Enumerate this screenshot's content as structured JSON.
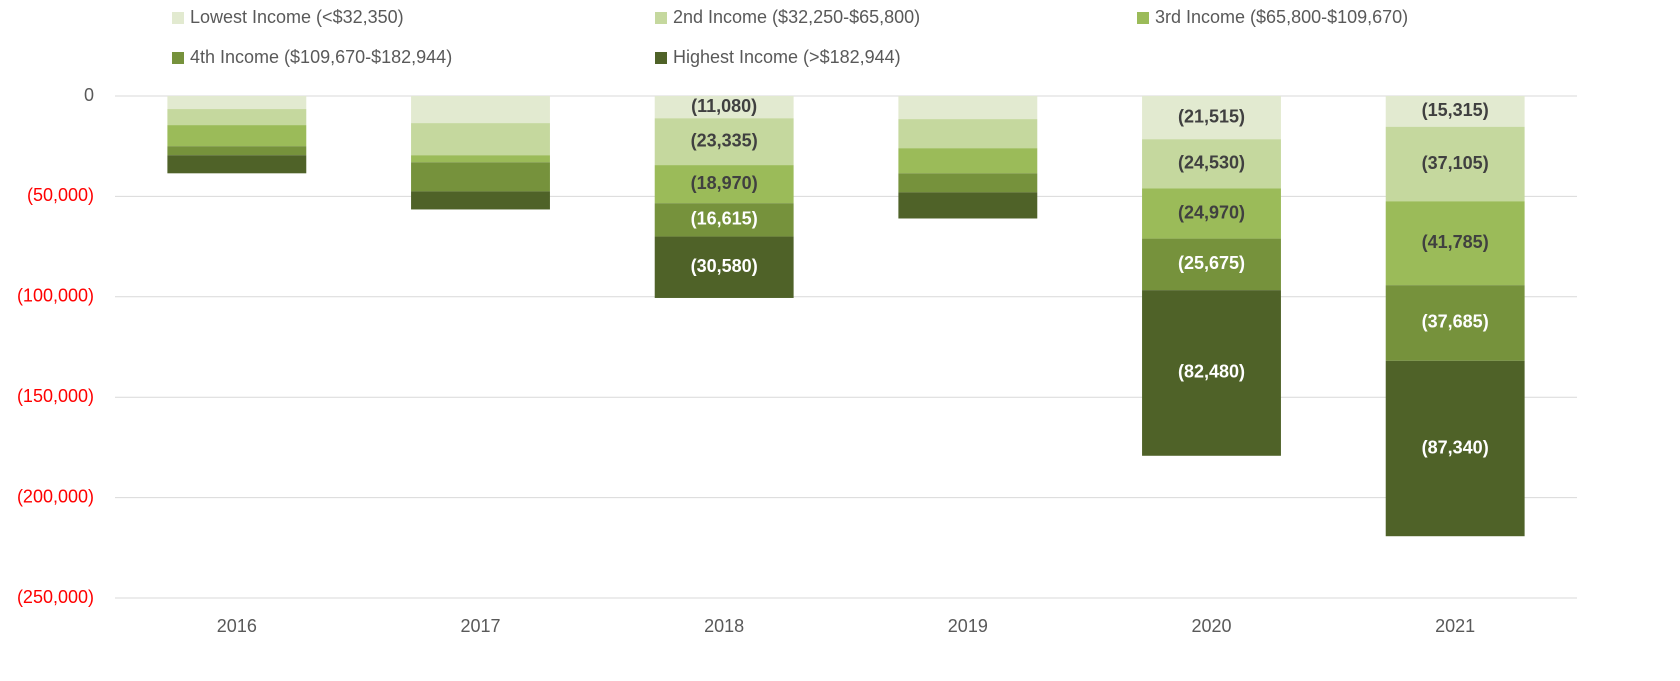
{
  "chart_data": {
    "type": "stacked_bar",
    "categories": [
      "2016",
      "2017",
      "2018",
      "2019",
      "2020",
      "2021"
    ],
    "series": [
      {
        "name": "Lowest Income (<$32,350)",
        "color": "#e2ead0",
        "values": [
          -6500,
          -13500,
          -11080,
          -11500,
          -21515,
          -15315
        ],
        "value_labels": [
          null,
          null,
          "(11,080)",
          null,
          "(21,515)",
          "(15,315)"
        ]
      },
      {
        "name": "2nd Income ($32,250-$65,800)",
        "color": "#c5d89e",
        "values": [
          -8000,
          -16000,
          -23335,
          -14500,
          -24530,
          -37105
        ],
        "value_labels": [
          null,
          null,
          "(23,335)",
          null,
          "(24,530)",
          "(37,105)"
        ]
      },
      {
        "name": "3rd Income ($65,800-$109,670)",
        "color": "#9bbb59",
        "values": [
          -10500,
          -3500,
          -18970,
          -12500,
          -24970,
          -41785
        ],
        "value_labels": [
          null,
          null,
          "(18,970)",
          null,
          "(24,970)",
          "(41,785)"
        ]
      },
      {
        "name": "4th Income ($109,670-$182,944)",
        "color": "#76923c",
        "values": [
          -4500,
          -14500,
          -16615,
          -9500,
          -25675,
          -37685
        ],
        "value_labels": [
          null,
          null,
          "(16,615)",
          null,
          "(25,675)",
          "(37,685)"
        ]
      },
      {
        "name": "Highest Income (>$182,944)",
        "color": "#4f6228",
        "values": [
          -9000,
          -9000,
          -30580,
          -13000,
          -82480,
          -87340
        ],
        "value_labels": [
          null,
          null,
          "(30,580)",
          null,
          "(82,480)",
          "(87,340)"
        ]
      }
    ],
    "ylim": [
      -250000,
      0
    ],
    "yticks": [
      0,
      {
        "value": -50000,
        "label": "(50,000)"
      },
      {
        "value": -100000,
        "label": "(100,000)"
      },
      {
        "value": -150000,
        "label": "(150,000)"
      },
      {
        "value": -200000,
        "label": "(200,000)"
      },
      {
        "value": -250000,
        "label": "(250,000)"
      }
    ],
    "grid": true,
    "legend": "top"
  }
}
